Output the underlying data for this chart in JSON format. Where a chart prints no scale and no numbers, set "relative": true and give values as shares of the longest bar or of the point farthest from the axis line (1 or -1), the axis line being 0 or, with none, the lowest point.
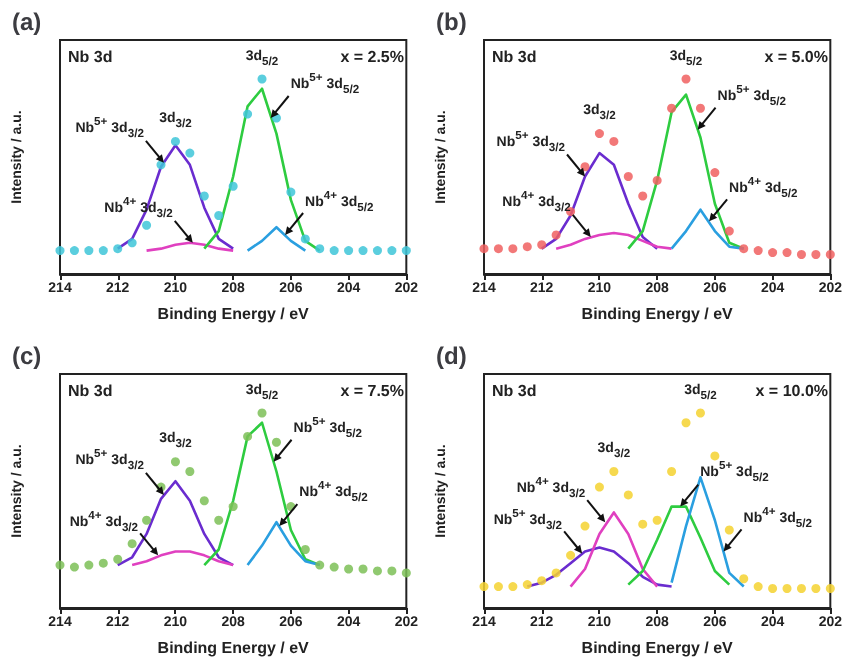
{
  "chart_data": [
    {
      "type": "line",
      "relative": true,
      "title": "(a)",
      "xlabel": "Binding Energy / eV",
      "ylabel": "Intensity / a.u.",
      "xlim": [
        214,
        202
      ],
      "xticks": [
        214,
        212,
        210,
        208,
        206,
        204,
        202
      ],
      "annotations": [
        "Nb 3d",
        "x = 2.5%",
        "3d$_{5/2}$",
        "3d$_{3/2}$",
        {
          "text": "Nb$^{5+}$ 3d$_{3/2}$",
          "x": 210.4,
          "y": 0.57
        },
        {
          "text": "Nb$^{4+}$ 3d$_{3/2}$",
          "x": 209.4,
          "y": 0.16
        },
        {
          "text": "Nb$^{5+}$ 3d$_{5/2}$",
          "x": 206.7,
          "y": 0.8
        },
        {
          "text": "Nb$^{4+}$ 3d$_{5/2}$",
          "x": 206.2,
          "y": 0.2
        }
      ],
      "series": [
        {
          "type": "scatter",
          "marker": "circle",
          "color": "#3ec5d8",
          "x": [
            214,
            213.5,
            213,
            212.5,
            212,
            211.5,
            211,
            210.5,
            210,
            209.5,
            209,
            208.5,
            208,
            207.5,
            207,
            206.5,
            206,
            205.5,
            205,
            204.5,
            204,
            203.5,
            203,
            202.5,
            202
          ],
          "values": [
            0.12,
            0.12,
            0.12,
            0.12,
            0.13,
            0.16,
            0.25,
            0.56,
            0.68,
            0.62,
            0.4,
            0.3,
            0.45,
            0.82,
            1.0,
            0.8,
            0.42,
            0.18,
            0.13,
            0.12,
            0.12,
            0.12,
            0.12,
            0.12,
            0.12
          ]
        },
        {
          "color": "#6a2ccf",
          "x": [
            212,
            211.5,
            211,
            210.5,
            210,
            209.5,
            209,
            208.5,
            208
          ],
          "values": [
            0.13,
            0.18,
            0.33,
            0.55,
            0.66,
            0.56,
            0.34,
            0.18,
            0.13
          ]
        },
        {
          "color": "#e040c0",
          "x": [
            211,
            210.5,
            210,
            209.5,
            209,
            208.5,
            208
          ],
          "values": [
            0.12,
            0.13,
            0.15,
            0.16,
            0.15,
            0.13,
            0.12
          ]
        },
        {
          "color": "#2ecc40",
          "x": [
            209,
            208.5,
            208,
            207.5,
            207,
            206.5,
            206,
            205.5,
            205
          ],
          "values": [
            0.13,
            0.22,
            0.5,
            0.86,
            0.95,
            0.72,
            0.38,
            0.17,
            0.12
          ]
        },
        {
          "color": "#2a9fe0",
          "x": [
            207.5,
            207,
            206.5,
            206,
            205.5
          ],
          "values": [
            0.12,
            0.17,
            0.24,
            0.17,
            0.12
          ]
        }
      ]
    },
    {
      "type": "line",
      "relative": true,
      "title": "(b)",
      "xlabel": "Binding Energy / eV",
      "ylabel": "Intensity / a.u.",
      "xlim": [
        214,
        202
      ],
      "xticks": [
        214,
        212,
        210,
        208,
        206,
        204,
        202
      ],
      "annotations": [
        "Nb 3d",
        "x = 5.0%",
        "3d$_{5/2}$",
        "3d$_{3/2}$",
        {
          "text": "Nb$^{5+}$ 3d$_{3/2}$",
          "x": 210.5,
          "y": 0.5
        },
        {
          "text": "Nb$^{4+}$ 3d$_{3/2}$",
          "x": 210.3,
          "y": 0.19
        },
        {
          "text": "Nb$^{5+}$ 3d$_{5/2}$",
          "x": 206.6,
          "y": 0.74
        },
        {
          "text": "Nb$^{4+}$ 3d$_{5/2}$",
          "x": 206.2,
          "y": 0.27
        }
      ],
      "series": [
        {
          "type": "scatter",
          "marker": "circle",
          "color": "#f06060",
          "x": [
            214,
            213.5,
            213,
            212.5,
            212,
            211.5,
            211,
            210.5,
            210,
            209.5,
            209,
            208.5,
            208,
            207.5,
            207,
            206.5,
            206,
            205.5,
            205,
            204.5,
            204,
            203.5,
            203,
            202.5,
            202
          ],
          "values": [
            0.13,
            0.13,
            0.13,
            0.14,
            0.15,
            0.2,
            0.32,
            0.55,
            0.72,
            0.68,
            0.5,
            0.4,
            0.48,
            0.85,
            1.0,
            0.85,
            0.52,
            0.22,
            0.13,
            0.12,
            0.11,
            0.11,
            0.1,
            0.1,
            0.1
          ]
        },
        {
          "color": "#6a2ccf",
          "x": [
            212,
            211.5,
            211,
            210.5,
            210,
            209.5,
            209,
            208.5,
            208
          ],
          "values": [
            0.13,
            0.18,
            0.3,
            0.5,
            0.62,
            0.56,
            0.36,
            0.19,
            0.13
          ]
        },
        {
          "color": "#e040c0",
          "x": [
            211.5,
            211,
            210.5,
            210,
            209.5,
            209,
            208.5,
            208,
            207.5
          ],
          "values": [
            0.13,
            0.15,
            0.18,
            0.2,
            0.21,
            0.2,
            0.17,
            0.14,
            0.13
          ]
        },
        {
          "color": "#2ecc40",
          "x": [
            209,
            208.5,
            208,
            207.5,
            207,
            206.5,
            206,
            205.5,
            205
          ],
          "values": [
            0.13,
            0.22,
            0.48,
            0.83,
            0.92,
            0.7,
            0.36,
            0.16,
            0.13
          ]
        },
        {
          "color": "#2a9fe0",
          "x": [
            207.5,
            207,
            206.5,
            206,
            205.5,
            205
          ],
          "values": [
            0.13,
            0.22,
            0.33,
            0.22,
            0.14,
            0.13
          ]
        }
      ]
    },
    {
      "type": "line",
      "relative": true,
      "title": "(c)",
      "xlabel": "Binding Energy / eV",
      "ylabel": "Intensity / a.u.",
      "xlim": [
        214,
        202
      ],
      "xticks": [
        214,
        212,
        210,
        208,
        206,
        204,
        202
      ],
      "annotations": [
        "Nb 3d",
        "x = 7.5%",
        "3d$_{5/2}$",
        "3d$_{3/2}$",
        {
          "text": "Nb$^{5+}$ 3d$_{3/2}$",
          "x": 210.4,
          "y": 0.58
        },
        {
          "text": "Nb$^{4+}$ 3d$_{3/2}$",
          "x": 210.6,
          "y": 0.27
        },
        {
          "text": "Nb$^{5+}$ 3d$_{5/2}$",
          "x": 206.6,
          "y": 0.75
        },
        {
          "text": "Nb$^{4+}$ 3d$_{5/2}$",
          "x": 206.4,
          "y": 0.42
        }
      ],
      "series": [
        {
          "type": "scatter",
          "marker": "circle",
          "color": "#7cc057",
          "x": [
            214,
            213.5,
            213,
            212.5,
            212,
            211.5,
            211,
            210.5,
            210,
            209.5,
            209,
            208.5,
            208,
            207.5,
            207,
            206.5,
            206,
            205.5,
            205,
            204.5,
            204,
            203.5,
            203,
            202.5,
            202
          ],
          "values": [
            0.22,
            0.21,
            0.22,
            0.23,
            0.25,
            0.33,
            0.45,
            0.62,
            0.75,
            0.7,
            0.55,
            0.45,
            0.52,
            0.88,
            1.0,
            0.85,
            0.52,
            0.3,
            0.22,
            0.21,
            0.2,
            0.2,
            0.19,
            0.19,
            0.18
          ]
        },
        {
          "color": "#6a2ccf",
          "x": [
            212,
            211.5,
            211,
            210.5,
            210,
            209.5,
            209,
            208.5,
            208
          ],
          "values": [
            0.22,
            0.26,
            0.38,
            0.56,
            0.65,
            0.55,
            0.38,
            0.26,
            0.22
          ]
        },
        {
          "color": "#e040c0",
          "x": [
            211.5,
            211,
            210.5,
            210,
            209.5,
            209,
            208.5,
            208
          ],
          "values": [
            0.22,
            0.24,
            0.27,
            0.29,
            0.29,
            0.27,
            0.24,
            0.22
          ]
        },
        {
          "color": "#2ecc40",
          "x": [
            209,
            208.5,
            208,
            207.5,
            207,
            206.5,
            206,
            205.5,
            205
          ],
          "values": [
            0.22,
            0.3,
            0.55,
            0.88,
            0.95,
            0.7,
            0.4,
            0.25,
            0.22
          ]
        },
        {
          "color": "#2a9fe0",
          "x": [
            207.5,
            207,
            206.5,
            206,
            205.5,
            205
          ],
          "values": [
            0.22,
            0.32,
            0.44,
            0.32,
            0.24,
            0.22
          ]
        }
      ]
    },
    {
      "type": "line",
      "relative": true,
      "title": "(d)",
      "xlabel": "Binding Energy / eV",
      "ylabel": "Intensity / a.u.",
      "xlim": [
        214,
        202
      ],
      "xticks": [
        214,
        212,
        210,
        208,
        206,
        204,
        202
      ],
      "annotations": [
        "Nb 3d",
        "x = 10.0%",
        "3d$_{5/2}$",
        "3d$_{3/2}$",
        {
          "text": "Nb$^{4+}$ 3d$_{3/2}$",
          "x": 209.8,
          "y": 0.44
        },
        {
          "text": "Nb$^{5+}$ 3d$_{3/2}$",
          "x": 210.6,
          "y": 0.28
        },
        {
          "text": "Nb$^{5+}$ 3d$_{5/2}$",
          "x": 207.2,
          "y": 0.52
        },
        {
          "text": "Nb$^{4+}$ 3d$_{5/2}$",
          "x": 205.7,
          "y": 0.29
        }
      ],
      "series": [
        {
          "type": "scatter",
          "marker": "circle",
          "color": "#f5d230",
          "x": [
            214,
            213.5,
            213,
            212.5,
            212,
            211.5,
            211,
            210.5,
            210,
            209.5,
            209,
            208.5,
            208,
            207.5,
            207,
            206.5,
            206,
            205.5,
            205,
            204.5,
            204,
            203.5,
            203,
            202.5,
            202
          ],
          "values": [
            0.11,
            0.11,
            0.11,
            0.12,
            0.14,
            0.18,
            0.27,
            0.42,
            0.62,
            0.7,
            0.58,
            0.43,
            0.45,
            0.7,
            0.95,
            1.0,
            0.78,
            0.4,
            0.15,
            0.11,
            0.1,
            0.1,
            0.1,
            0.1,
            0.1
          ]
        },
        {
          "color": "#6a2ccf",
          "x": [
            212.5,
            212,
            211.5,
            211,
            210.5,
            210,
            209.5,
            209,
            208.5,
            208,
            207.5
          ],
          "values": [
            0.11,
            0.13,
            0.17,
            0.23,
            0.29,
            0.31,
            0.29,
            0.23,
            0.16,
            0.12,
            0.11
          ]
        },
        {
          "color": "#e040c0",
          "x": [
            211,
            210.5,
            210,
            209.5,
            209,
            208.5,
            208
          ],
          "values": [
            0.11,
            0.2,
            0.38,
            0.49,
            0.38,
            0.2,
            0.11
          ]
        },
        {
          "color": "#2ecc40",
          "x": [
            209,
            208.5,
            208,
            207.5,
            207,
            206.5,
            206,
            205.5
          ],
          "values": [
            0.12,
            0.19,
            0.35,
            0.52,
            0.52,
            0.36,
            0.19,
            0.12
          ]
        },
        {
          "color": "#2a9fe0",
          "x": [
            207.5,
            207,
            206.5,
            206,
            205.5,
            205
          ],
          "values": [
            0.13,
            0.42,
            0.67,
            0.45,
            0.18,
            0.11
          ]
        }
      ]
    }
  ]
}
